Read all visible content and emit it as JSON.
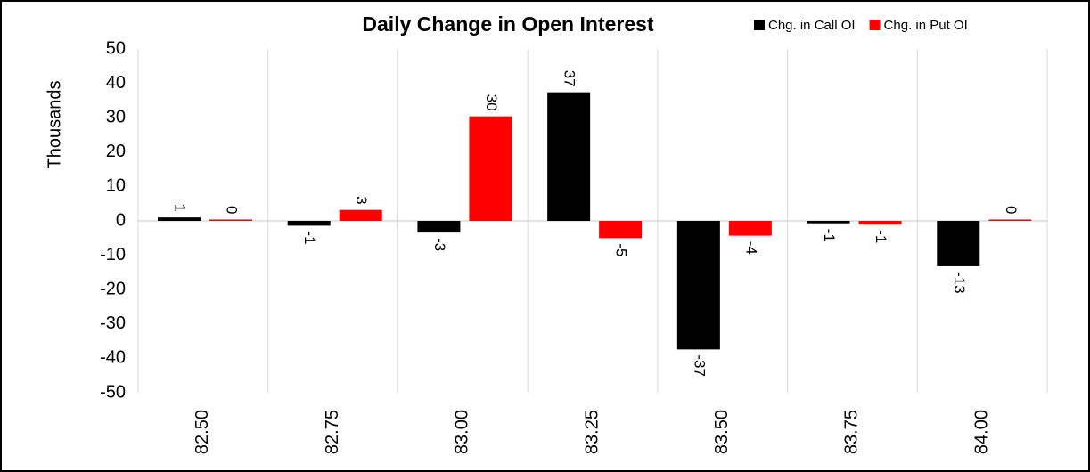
{
  "chart_data": {
    "type": "bar",
    "title": "Daily Change in Open Interest",
    "y_label": "Thousands",
    "categories": [
      "82.50",
      "82.75",
      "83.00",
      "83.25",
      "83.50",
      "83.75",
      "84.00"
    ],
    "series": [
      {
        "name": "Chg. in Call OI",
        "color": "#000000",
        "values": [
          1.0,
          -1.4,
          -3.4,
          37.4,
          -37.4,
          -0.7,
          -13.2
        ],
        "value_labels": [
          "1",
          "-1",
          "-3",
          "37",
          "-37",
          "-1",
          "-13"
        ]
      },
      {
        "name": "Chg. in Put OI",
        "color": "#ff0000",
        "values": [
          0.4,
          3.2,
          30.4,
          -5.0,
          -4.3,
          -1.1,
          0.4
        ],
        "value_labels": [
          "0",
          "3",
          "30",
          "-5",
          "-4",
          "-1",
          "0"
        ]
      }
    ],
    "ylim": [
      -50,
      50
    ],
    "yticks": [
      -50,
      -40,
      -30,
      -20,
      -10,
      0,
      10,
      20,
      30,
      40,
      50
    ],
    "legend": "top-right"
  }
}
